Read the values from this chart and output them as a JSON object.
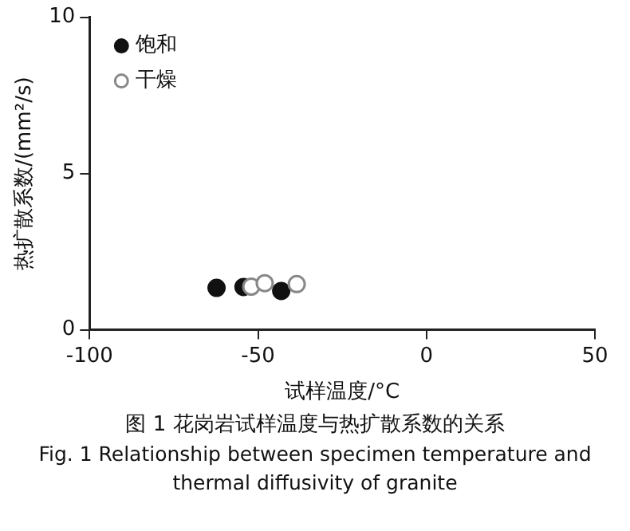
{
  "chart_data": {
    "type": "scatter",
    "title": "图 1 花岗岩试样温度与热扩散系数的关系",
    "subtitle": "Fig. 1 Relationship between specimen temperature and thermal diffusivity of granite",
    "xlabel": "试样温度/°C",
    "ylabel": "热扩散系数/(mm²/s)",
    "series": [
      {
        "name": "饱和",
        "color": "#111111",
        "x": [
          -62.3,
          -54.3,
          -43.1
        ],
        "values": [
          1.34,
          1.37,
          1.24
        ]
      },
      {
        "name": "干燥",
        "color": "#888888",
        "x": [
          -52,
          -48,
          -38.5
        ],
        "values": [
          1.38,
          1.49,
          1.46
        ]
      }
    ],
    "xlim": [
      -100,
      50
    ],
    "xticks": [
      -100,
      -50,
      0,
      50
    ],
    "ylim": [
      0,
      10
    ],
    "yticks": [
      0,
      5,
      10
    ],
    "grid": false,
    "legend": "top left",
    "marker": "circle"
  }
}
